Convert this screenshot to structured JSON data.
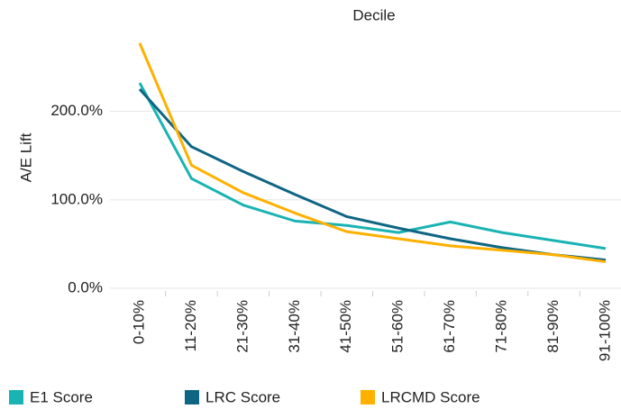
{
  "chart_data": {
    "type": "line",
    "title": "Decile",
    "y_label": "A/E Lift",
    "categories": [
      "0-10%",
      "11-20%",
      "21-30%",
      "31-40%",
      "41-50%",
      "51-60%",
      "61-70%",
      "71-80%",
      "81-90%",
      "91-100%"
    ],
    "series": [
      {
        "name": "E1 Score",
        "color": "#1ab3b3",
        "values": [
          232,
          124,
          94,
          76,
          71,
          63,
          75,
          63,
          54,
          45
        ]
      },
      {
        "name": "LRC Score",
        "color": "#0e6683",
        "values": [
          225,
          160,
          132,
          106,
          81,
          68,
          56,
          46,
          38,
          32
        ]
      },
      {
        "name": "LRCMD Score",
        "color": "#ffb000",
        "values": [
          277,
          139,
          108,
          85,
          64,
          56,
          48,
          43,
          38,
          30
        ]
      }
    ],
    "ylim": [
      -3,
      285
    ],
    "yticks": [
      {
        "value": 0,
        "label": "0.0%"
      },
      {
        "value": 100,
        "label": "100.0%"
      },
      {
        "value": 200,
        "label": "200.0%"
      }
    ],
    "grid": true
  }
}
